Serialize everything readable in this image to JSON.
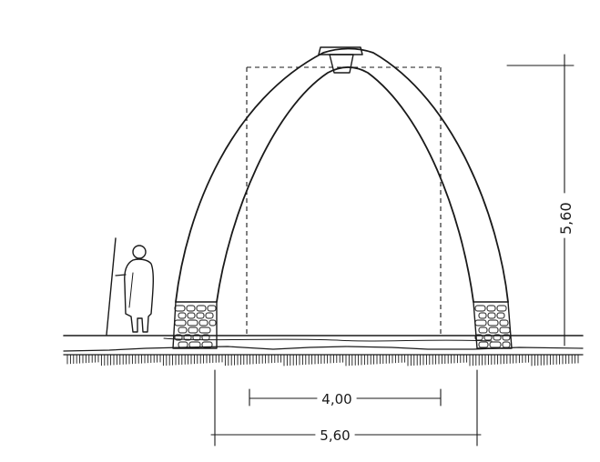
{
  "drawing": {
    "subject": "arch-cross-section",
    "dimensions": {
      "height_label": "5,60",
      "inner_width_label": "4,00",
      "outer_width_label": "5,60"
    },
    "colors": {
      "ink": "#1a1a1a",
      "paper": "#ffffff"
    }
  }
}
